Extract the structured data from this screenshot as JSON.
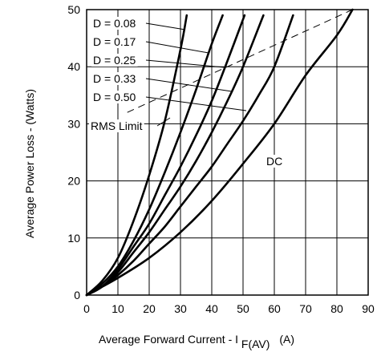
{
  "chart_data": {
    "type": "line",
    "title": "",
    "xlabel": "Average Forward Current - I",
    "xlabel_sub": "F(AV)",
    "xlabel_unit": "(A)",
    "ylabel": "Average Power Loss - (Watts)",
    "xlim": [
      0,
      90
    ],
    "ylim": [
      0,
      50
    ],
    "x_ticks": [
      0,
      10,
      20,
      30,
      40,
      50,
      60,
      70,
      80,
      90
    ],
    "y_ticks": [
      0,
      10,
      20,
      30,
      40,
      50
    ],
    "grid": true,
    "series": [
      {
        "name": "D = 0.08",
        "x": [
          0,
          5,
          10,
          15,
          20,
          25,
          30,
          32
        ],
        "y": [
          0,
          2.5,
          6.5,
          13,
          21,
          30.5,
          43,
          49
        ]
      },
      {
        "name": "D = 0.17",
        "x": [
          0,
          5,
          10,
          15,
          20,
          25,
          30,
          35,
          40,
          43.5
        ],
        "y": [
          0,
          2,
          5,
          9.5,
          15,
          21.5,
          28.5,
          36,
          44,
          49
        ]
      },
      {
        "name": "D = 0.25",
        "x": [
          0,
          5,
          10,
          15,
          20,
          25,
          30,
          35,
          40,
          45,
          50.5
        ],
        "y": [
          0,
          1.5,
          4.5,
          8.5,
          12.5,
          17.5,
          22.5,
          28,
          34,
          41,
          49
        ]
      },
      {
        "name": "D = 0.33",
        "x": [
          0,
          5,
          10,
          15,
          20,
          25,
          30,
          35,
          40,
          45,
          50,
          56.5
        ],
        "y": [
          0,
          1.5,
          4,
          7.5,
          11,
          15,
          19,
          23.5,
          28.5,
          34,
          40,
          49
        ]
      },
      {
        "name": "D = 0.50",
        "x": [
          0,
          5,
          10,
          15,
          20,
          25,
          30,
          35,
          40,
          45,
          50,
          55,
          60,
          66
        ],
        "y": [
          0,
          1.5,
          3.5,
          6,
          9,
          12,
          15.5,
          19,
          22.5,
          26.5,
          30.5,
          35,
          40,
          49
        ]
      },
      {
        "name": "DC",
        "x": [
          0,
          10,
          20,
          30,
          40,
          50,
          60,
          70,
          80,
          85
        ],
        "y": [
          0,
          3,
          6.5,
          11,
          16.5,
          23,
          30,
          38.5,
          45.5,
          50
        ]
      }
    ],
    "rms_limit": {
      "name": "RMS Limit",
      "x": [
        13,
        85
      ],
      "y": [
        32,
        50
      ]
    },
    "annotations": [
      {
        "text": "D = 0.08",
        "curve": "D = 0.08"
      },
      {
        "text": "D = 0.17",
        "curve": "D = 0.17"
      },
      {
        "text": "D = 0.25",
        "curve": "D = 0.25"
      },
      {
        "text": "D = 0.33",
        "curve": "D = 0.33"
      },
      {
        "text": "D = 0.50",
        "curve": "D = 0.50"
      },
      {
        "text": "RMS Limit",
        "curve": "RMS Limit"
      },
      {
        "text": "DC",
        "curve": "DC"
      }
    ]
  }
}
